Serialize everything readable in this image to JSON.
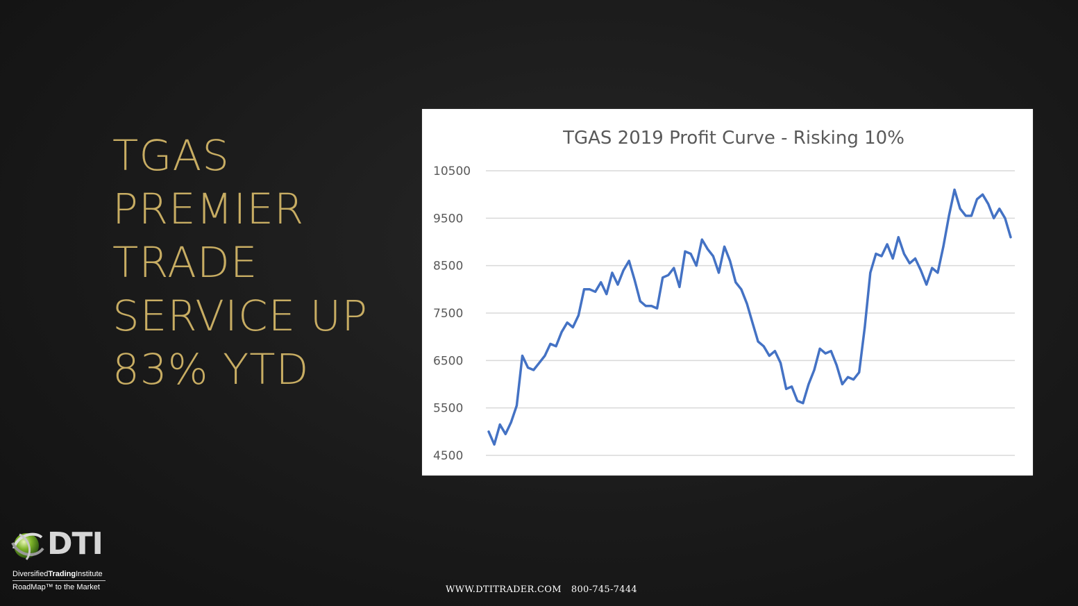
{
  "headline": {
    "lines": [
      "TGAS",
      "PREMIER",
      "TRADE",
      "SERVICE UP",
      "83% YTD"
    ]
  },
  "colors": {
    "headline": "#c8ad63",
    "series_line": "#4472c4",
    "gridline": "#d9d9d9",
    "chart_bg": "#ffffff"
  },
  "logo": {
    "brand": "DTI",
    "brand_name_regular_1": "Diversified",
    "brand_name_bold": "Trading",
    "brand_name_regular_2": "Institute",
    "tagline": "RoadMap™ to the Market",
    "icon": "globe-swoosh-icon"
  },
  "footer": {
    "website": "WWW.DTITRADER.COM",
    "phone": "800-745-7444"
  },
  "chart_data": {
    "type": "line",
    "title": "TGAS 2019 Profit Curve - Risking 10%",
    "xlabel": "",
    "ylabel": "",
    "ylim": [
      4500,
      10500
    ],
    "yticks": [
      4500,
      5500,
      6500,
      7500,
      8500,
      9500,
      10500
    ],
    "grid": true,
    "legend": "none",
    "series": [
      {
        "values": [
          5000,
          4730,
          5150,
          4950,
          5200,
          5550,
          6600,
          6350,
          6300,
          6450,
          6600,
          6850,
          6800,
          7100,
          7300,
          7200,
          7450,
          8000,
          8000,
          7950,
          8150,
          7900,
          8350,
          8100,
          8400,
          8600,
          8200,
          7750,
          7650,
          7650,
          7600,
          8250,
          8300,
          8450,
          8050,
          8800,
          8750,
          8500,
          9050,
          8850,
          8700,
          8350,
          8900,
          8600,
          8150,
          8000,
          7700,
          7300,
          6900,
          6800,
          6600,
          6700,
          6450,
          5900,
          5950,
          5650,
          5600,
          6000,
          6300,
          6750,
          6650,
          6700,
          6400,
          6000,
          6150,
          6100,
          6250,
          7200,
          8350,
          8750,
          8700,
          8950,
          8650,
          9100,
          8750,
          8550,
          8650,
          8400,
          8100,
          8450,
          8350,
          8900,
          9550,
          10100,
          9700,
          9550,
          9550,
          9900,
          10000,
          9800,
          9500,
          9700,
          9500,
          9100
        ]
      }
    ]
  }
}
